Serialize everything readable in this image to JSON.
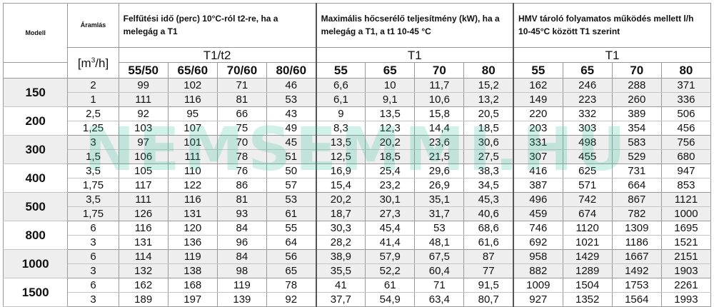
{
  "header": {
    "model_label": "Modell",
    "flow_label": "Áramlás",
    "flow_unit_prefix": "[m",
    "flow_unit_sup": "3",
    "flow_unit_suffix": "/h]",
    "group1_title": "Felfűtési idő (perc) 10°C-ról t2-re, ha a melegág a T1",
    "group2_title": "Maximális hőcserélő teljesítmény (kW), ha a melegág a T1, a t1 10-45 °C",
    "group3_title": "HMV tároló folyamatos működés mellett l/h 10-45°C között T1 szerint",
    "group1_sub": "T1/t2",
    "group2_sub": "T1",
    "group3_sub": "T1",
    "group1_cols": [
      "55/50",
      "65/60",
      "70/60",
      "80/60"
    ],
    "group2_cols": [
      "55",
      "65",
      "70",
      "80"
    ],
    "group3_cols": [
      "55",
      "65",
      "70",
      "80"
    ]
  },
  "rows": [
    {
      "model": "150",
      "sub": [
        {
          "flow": "2",
          "g1": [
            "99",
            "102",
            "71",
            "46"
          ],
          "g2": [
            "6,6",
            "10",
            "11,7",
            "15,2"
          ],
          "g3": [
            "162",
            "246",
            "288",
            "371"
          ]
        },
        {
          "flow": "1",
          "g1": [
            "111",
            "116",
            "81",
            "53"
          ],
          "g2": [
            "6,1",
            "9,1",
            "10,6",
            "13,2"
          ],
          "g3": [
            "149",
            "223",
            "260",
            "336"
          ]
        }
      ]
    },
    {
      "model": "200",
      "sub": [
        {
          "flow": "2,5",
          "g1": [
            "92",
            "95",
            "66",
            "43"
          ],
          "g2": [
            "9",
            "13,5",
            "15,8",
            "20,5"
          ],
          "g3": [
            "220",
            "332",
            "389",
            "506"
          ]
        },
        {
          "flow": "1,25",
          "g1": [
            "103",
            "107",
            "75",
            "49"
          ],
          "g2": [
            "8,3",
            "12,3",
            "14,4",
            "18,5"
          ],
          "g3": [
            "203",
            "303",
            "354",
            "456"
          ]
        }
      ]
    },
    {
      "model": "300",
      "sub": [
        {
          "flow": "3",
          "g1": [
            "97",
            "101",
            "70",
            "45"
          ],
          "g2": [
            "13,5",
            "20,2",
            "23,6",
            "30,6"
          ],
          "g3": [
            "331",
            "498",
            "583",
            "756"
          ]
        },
        {
          "flow": "1,5",
          "g1": [
            "106",
            "111",
            "78",
            "51"
          ],
          "g2": [
            "12,5",
            "18,5",
            "21,5",
            "27,5"
          ],
          "g3": [
            "307",
            "455",
            "529",
            "680"
          ]
        }
      ]
    },
    {
      "model": "400",
      "sub": [
        {
          "flow": "3,5",
          "g1": [
            "105",
            "110",
            "76",
            "50"
          ],
          "g2": [
            "16,9",
            "25,4",
            "29,6",
            "38,3"
          ],
          "g3": [
            "416",
            "625",
            "731",
            "947"
          ]
        },
        {
          "flow": "1,75",
          "g1": [
            "117",
            "122",
            "86",
            "57"
          ],
          "g2": [
            "15,4",
            "23,2",
            "26,9",
            "34,5"
          ],
          "g3": [
            "387",
            "571",
            "664",
            "853"
          ]
        }
      ]
    },
    {
      "model": "500",
      "sub": [
        {
          "flow": "3,5",
          "g1": [
            "111",
            "116",
            "81",
            "53"
          ],
          "g2": [
            "20,2",
            "30,1",
            "35,1",
            "45,3"
          ],
          "g3": [
            "496",
            "742",
            "867",
            "1121"
          ]
        },
        {
          "flow": "1,75",
          "g1": [
            "126",
            "131",
            "93",
            "61"
          ],
          "g2": [
            "18,7",
            "27,3",
            "31,7",
            "40,6"
          ],
          "g3": [
            "459",
            "674",
            "782",
            "1000"
          ]
        }
      ]
    },
    {
      "model": "800",
      "sub": [
        {
          "flow": "6",
          "g1": [
            "116",
            "120",
            "84",
            "55"
          ],
          "g2": [
            "30,3",
            "45,4",
            "53",
            "68,6"
          ],
          "g3": [
            "746",
            "1120",
            "1309",
            "1695"
          ]
        },
        {
          "flow": "3",
          "g1": [
            "131",
            "136",
            "96",
            "64"
          ],
          "g2": [
            "28,2",
            "41,4",
            "48,1",
            "61,6"
          ],
          "g3": [
            "692",
            "1021",
            "1186",
            "1521"
          ]
        }
      ]
    },
    {
      "model": "1000",
      "sub": [
        {
          "flow": "6",
          "g1": [
            "114",
            "119",
            "84",
            "56"
          ],
          "g2": [
            "38,9",
            "57,9",
            "67,5",
            "87"
          ],
          "g3": [
            "958",
            "1429",
            "1667",
            "2151"
          ]
        },
        {
          "flow": "3",
          "g1": [
            "132",
            "138",
            "98",
            "65"
          ],
          "g2": [
            "35,5",
            "52,2",
            "60,4",
            "77"
          ],
          "g3": [
            "882",
            "1289",
            "1492",
            "1903"
          ]
        }
      ]
    },
    {
      "model": "1500",
      "sub": [
        {
          "flow": "6",
          "g1": [
            "162",
            "168",
            "119",
            "78"
          ],
          "g2": [
            "41",
            "61",
            "71",
            "91,5"
          ],
          "g3": [
            "1009",
            "1504",
            "1753",
            "2261"
          ]
        },
        {
          "flow": "3",
          "g1": [
            "189",
            "197",
            "139",
            "92"
          ],
          "g2": [
            "37,7",
            "54,9",
            "63,4",
            "80,7"
          ],
          "g3": [
            "927",
            "1352",
            "1564",
            "1993"
          ]
        }
      ]
    }
  ],
  "watermark": "NEMSEMMI.HU",
  "colors": {
    "shade": "#eeeeee",
    "border": "#9a9a9a",
    "watermark": "#28be96"
  }
}
